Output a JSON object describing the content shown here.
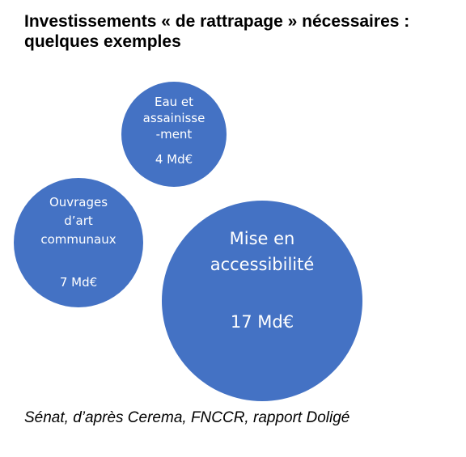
{
  "colors": {
    "bubble_fill": "#4472c4",
    "bubble_text": "#ffffff",
    "text": "#000000",
    "background": "#ffffff"
  },
  "chart_data": {
    "type": "bubble",
    "title": "Investissements « de rattrapage » nécessaires : quelques exemples",
    "title_lines": [
      "Investissements « de rattrapage » nécessaires :",
      "quelques exemples"
    ],
    "unit": "Md€",
    "bubbles": [
      {
        "label_lines": [
          "Eau et",
          "assainisse",
          "-ment"
        ],
        "value": 4,
        "value_label": "4 Md€"
      },
      {
        "label_lines": [
          "Ouvrages",
          "d’art",
          "communaux"
        ],
        "value": 7,
        "value_label": "7 Md€"
      },
      {
        "label_lines": [
          "Mise en",
          "accessibilité"
        ],
        "value": 17,
        "value_label": "17 Md€"
      }
    ]
  },
  "source": "Sénat, d’après Cerema, FNCCR, rapport Doligé"
}
